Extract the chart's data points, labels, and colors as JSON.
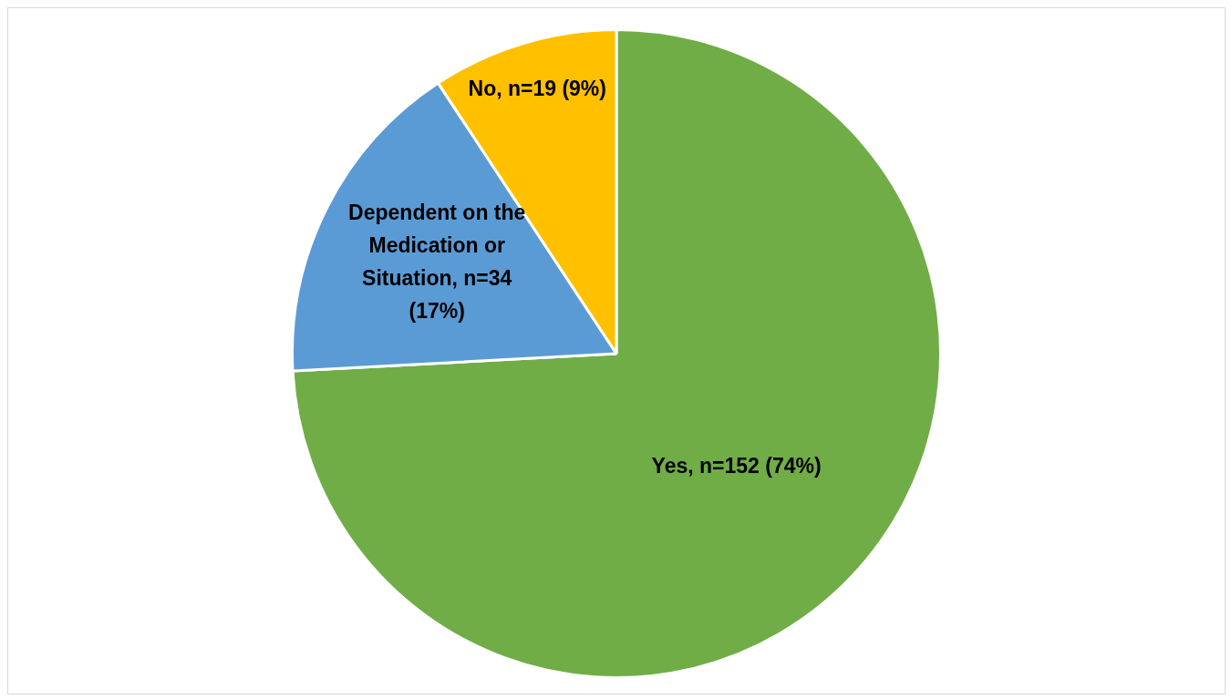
{
  "chart_data": {
    "type": "pie",
    "categories": [
      "Yes",
      "Dependent on the Medication or Situation",
      "No"
    ],
    "values": [
      152,
      34,
      19
    ],
    "colors": [
      "#70ad47",
      "#5b9bd5",
      "#ffc000"
    ],
    "value_labels": [
      "n=152 (74%)",
      "n=34 (17%)",
      "n=19 (9%)"
    ],
    "legend": false
  }
}
